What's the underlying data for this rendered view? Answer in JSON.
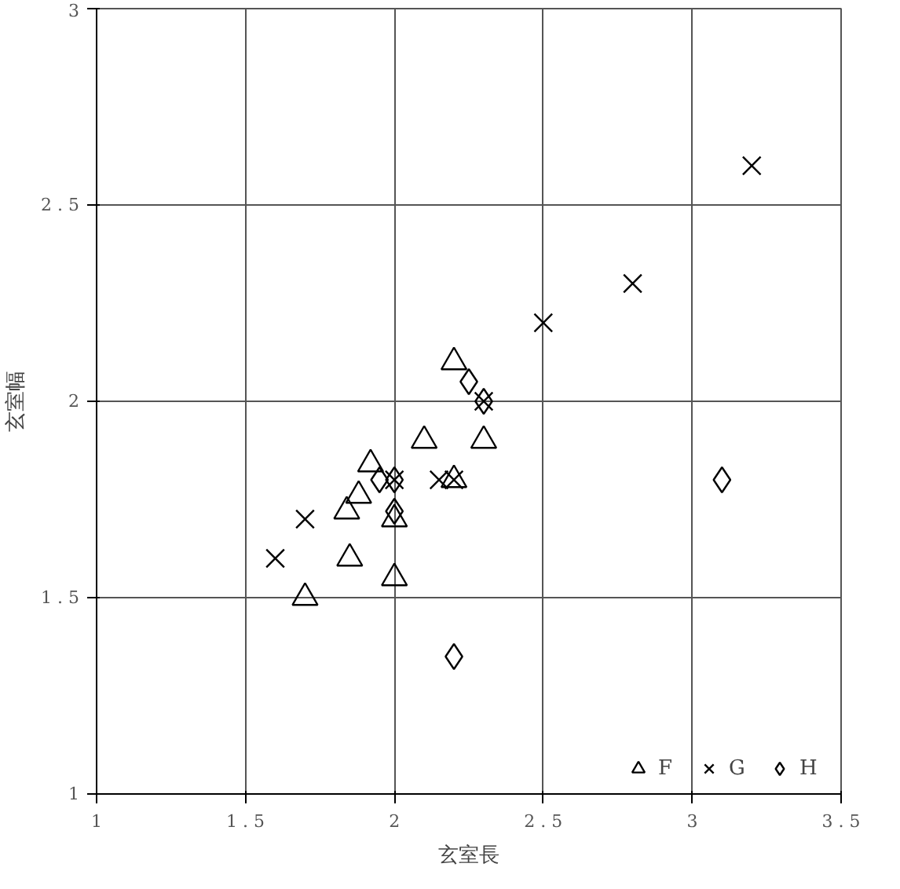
{
  "chart_data": {
    "type": "scatter",
    "xlabel": "玄室長",
    "ylabel": "玄室幅",
    "xlim": [
      1,
      3.5
    ],
    "ylim": [
      1,
      3
    ],
    "xticks": [
      1,
      1.5,
      2,
      2.5,
      3,
      3.5
    ],
    "yticks": [
      1,
      1.5,
      2,
      2.5,
      3
    ],
    "grid": true,
    "legend": "bottom right",
    "series": [
      {
        "name": "F",
        "color": "#000000",
        "marker": "triangle",
        "x": [
          1.7,
          1.85,
          1.84,
          1.88,
          1.92,
          2.0,
          2.0,
          2.1,
          2.2,
          2.3,
          2.2
        ],
        "values": [
          1.5,
          1.6,
          1.72,
          1.76,
          1.84,
          1.7,
          1.55,
          1.9,
          2.1,
          1.9,
          1.8
        ]
      },
      {
        "name": "G",
        "color": "#000000",
        "marker": "cross",
        "x": [
          1.6,
          1.7,
          2.0,
          2.15,
          2.2,
          2.3,
          2.5,
          2.8,
          3.2
        ],
        "values": [
          1.6,
          1.7,
          1.8,
          1.8,
          1.8,
          2.0,
          2.2,
          2.3,
          2.6
        ]
      },
      {
        "name": "H",
        "color": "#000000",
        "marker": "diamond",
        "x": [
          1.95,
          2.0,
          2.0,
          2.25,
          2.3,
          2.2,
          3.1
        ],
        "values": [
          1.8,
          1.8,
          1.72,
          2.05,
          2.0,
          1.35,
          1.8
        ]
      }
    ]
  }
}
